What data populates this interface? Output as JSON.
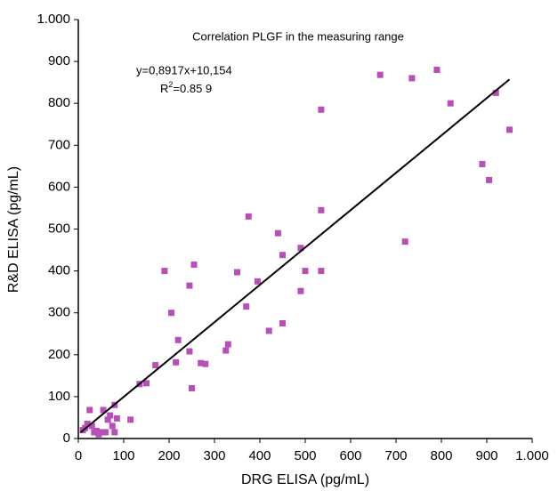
{
  "chart_data": {
    "type": "scatter",
    "title": "Correlation PLGF in the measuring range",
    "x_label": "DRG ELISA (pg/mL)",
    "y_label": "R&D ELISA (pg/mL)",
    "equation": "y=0,8917x+10,154",
    "r2_label": {
      "base": "R",
      "sup": "2",
      "rest": "=0.85 9"
    },
    "xlim": [
      0,
      1000
    ],
    "ylim": [
      0,
      1000
    ],
    "xticks": [
      0,
      100,
      200,
      300,
      400,
      500,
      600,
      700,
      800,
      900,
      {
        "value": 1000,
        "label": "1.000"
      }
    ],
    "yticks": [
      0,
      100,
      200,
      300,
      400,
      500,
      600,
      700,
      800,
      900,
      {
        "value": 1000,
        "label": "1.000"
      }
    ],
    "color": "#b84fb8",
    "fit": {
      "slope": 0.8917,
      "intercept": 10.154,
      "x": [
        5,
        950
      ],
      "color": "#000000"
    },
    "x": [
      10,
      15,
      20,
      25,
      30,
      35,
      40,
      45,
      50,
      55,
      60,
      65,
      70,
      75,
      80,
      80,
      85,
      115,
      135,
      150,
      170,
      190,
      205,
      215,
      220,
      245,
      245,
      250,
      255,
      270,
      280,
      325,
      330,
      350,
      370,
      375,
      395,
      420,
      440,
      450,
      450,
      490,
      490,
      500,
      535,
      535,
      535,
      665,
      720,
      735,
      790,
      820,
      890,
      905,
      920,
      950
    ],
    "values": [
      20,
      25,
      35,
      68,
      30,
      15,
      18,
      10,
      15,
      68,
      15,
      45,
      55,
      30,
      80,
      15,
      48,
      45,
      130,
      132,
      175,
      400,
      300,
      182,
      235,
      208,
      365,
      120,
      415,
      180,
      178,
      210,
      225,
      397,
      315,
      530,
      375,
      257,
      490,
      275,
      438,
      352,
      455,
      400,
      545,
      785,
      400,
      868,
      470,
      860,
      880,
      800,
      655,
      617,
      825,
      737
    ]
  }
}
